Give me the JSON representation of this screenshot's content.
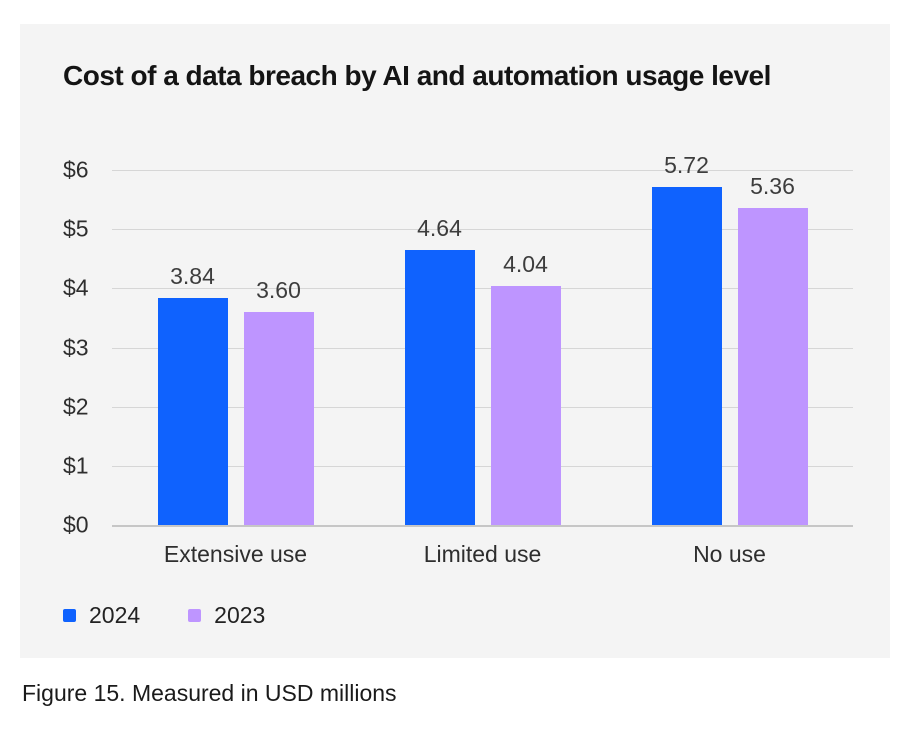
{
  "card": {
    "title": "Cost of a data breach by AI and automation usage level"
  },
  "caption": "Figure 15. Measured in USD millions",
  "colors": {
    "bar_2024": "#0f62fe",
    "bar_2023": "#be95ff",
    "card_background": "#f4f4f4",
    "gridline": "#d6d6d6",
    "baseline": "#c6c6c6"
  },
  "chart_data": {
    "type": "bar",
    "title": "Cost of a data breach by AI and automation usage level",
    "categories": [
      "Extensive use",
      "Limited use",
      "No use"
    ],
    "series": [
      {
        "name": "2024",
        "color": "#0f62fe",
        "values": [
          3.84,
          4.64,
          5.72
        ],
        "labels": [
          "3.84",
          "4.64",
          "5.72"
        ]
      },
      {
        "name": "2023",
        "color": "#be95ff",
        "values": [
          3.6,
          4.04,
          5.36
        ],
        "labels": [
          "3.60",
          "4.04",
          "5.36"
        ]
      }
    ],
    "yticks": [
      {
        "value": 6,
        "label": "$6"
      },
      {
        "value": 5,
        "label": "$5"
      },
      {
        "value": 4,
        "label": "$4"
      },
      {
        "value": 3,
        "label": "$3"
      },
      {
        "value": 2,
        "label": "$2"
      },
      {
        "value": 1,
        "label": "$1"
      },
      {
        "value": 0,
        "label": "$0"
      }
    ],
    "ylim": [
      0,
      6
    ],
    "grid": true,
    "legend_position": "bottom-left",
    "value_label_position": "above-bar",
    "unit": "USD millions"
  }
}
